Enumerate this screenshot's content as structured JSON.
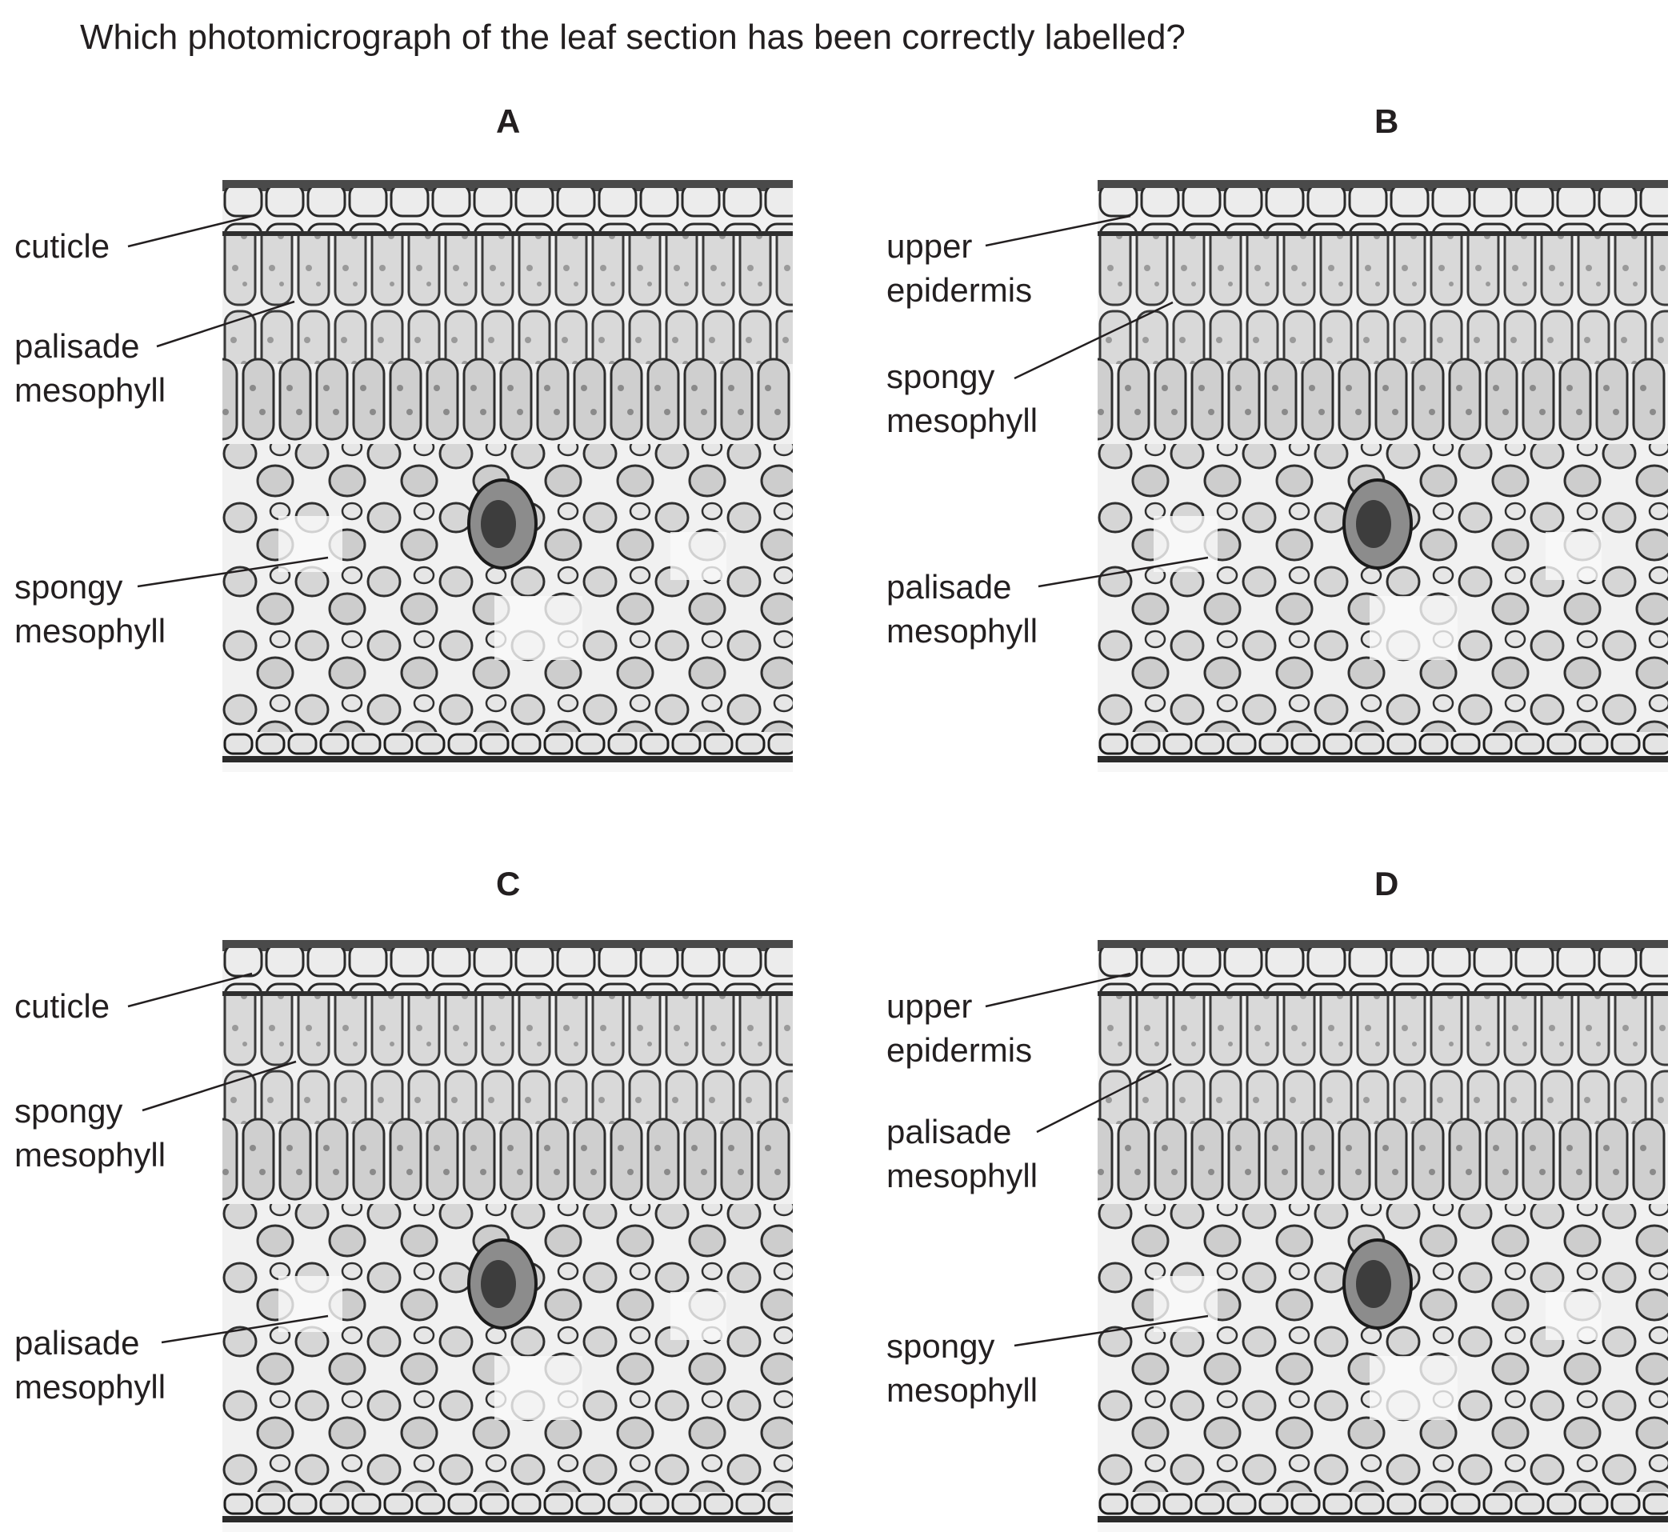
{
  "question": "Which photomicrograph of the leaf section has been correctly labelled?",
  "options": [
    {
      "letter": "A",
      "labels": {
        "top": "cuticle",
        "middle": [
          "palisade",
          "mesophyll"
        ],
        "bottom": [
          "spongy",
          "mesophyll"
        ]
      }
    },
    {
      "letter": "B",
      "labels": {
        "top": [
          "upper",
          "epidermis"
        ],
        "middle": [
          "spongy",
          "mesophyll"
        ],
        "bottom": [
          "palisade",
          "mesophyll"
        ]
      }
    },
    {
      "letter": "C",
      "labels": {
        "top": "cuticle",
        "middle": [
          "spongy",
          "mesophyll"
        ],
        "bottom": [
          "palisade",
          "mesophyll"
        ]
      }
    },
    {
      "letter": "D",
      "labels": {
        "top": [
          "upper",
          "epidermis"
        ],
        "middle": [
          "palisade",
          "mesophyll"
        ],
        "bottom": [
          "spongy",
          "mesophyll"
        ]
      }
    }
  ]
}
